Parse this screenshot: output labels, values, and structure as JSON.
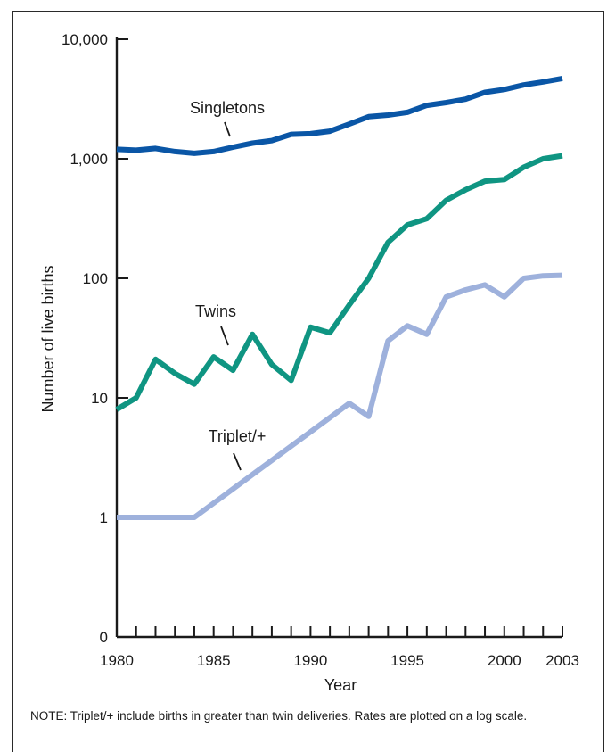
{
  "chart_data": {
    "type": "line",
    "xlabel": "Year",
    "ylabel": "Number of live births",
    "yscale": "log",
    "ylim": [
      0,
      10000
    ],
    "xlim": [
      1980,
      2003
    ],
    "x_tick_labels": [
      "1980",
      "1985",
      "1990",
      "1995",
      "2000",
      "2003"
    ],
    "y_tick_labels": [
      "0",
      "1",
      "10",
      "100",
      "1,000",
      "10,000"
    ],
    "grid": false,
    "x": [
      1980,
      1981,
      1982,
      1983,
      1984,
      1985,
      1986,
      1987,
      1988,
      1989,
      1990,
      1991,
      1992,
      1993,
      1994,
      1995,
      1996,
      1997,
      1998,
      1999,
      2000,
      2001,
      2002,
      2003
    ],
    "series": [
      {
        "name": "Singletons",
        "color": "#0a56a6",
        "values": [
          1200,
          1180,
          1220,
          1150,
          1110,
          1150,
          1250,
          1350,
          1420,
          1600,
          1620,
          1700,
          1950,
          2250,
          2320,
          2450,
          2800,
          2950,
          3150,
          3600,
          3800,
          4150,
          4400,
          4700
        ]
      },
      {
        "name": "Twins",
        "color": "#0f9582",
        "values": [
          8,
          10,
          21,
          16,
          13,
          22,
          17,
          34,
          19,
          14,
          39,
          35,
          60,
          100,
          200,
          280,
          315,
          450,
          550,
          650,
          670,
          850,
          1000,
          1060
        ]
      },
      {
        "name": "Triplet/+",
        "color": "#9eb1dc",
        "values": [
          1,
          1,
          1,
          1,
          1,
          null,
          null,
          null,
          null,
          null,
          null,
          null,
          9,
          7,
          30,
          40,
          34,
          70,
          80,
          88,
          70,
          100,
          105,
          106
        ]
      }
    ],
    "note": "NOTE: Triplet/+ include births in greater than twin deliveries. Rates are plotted on a log scale."
  }
}
